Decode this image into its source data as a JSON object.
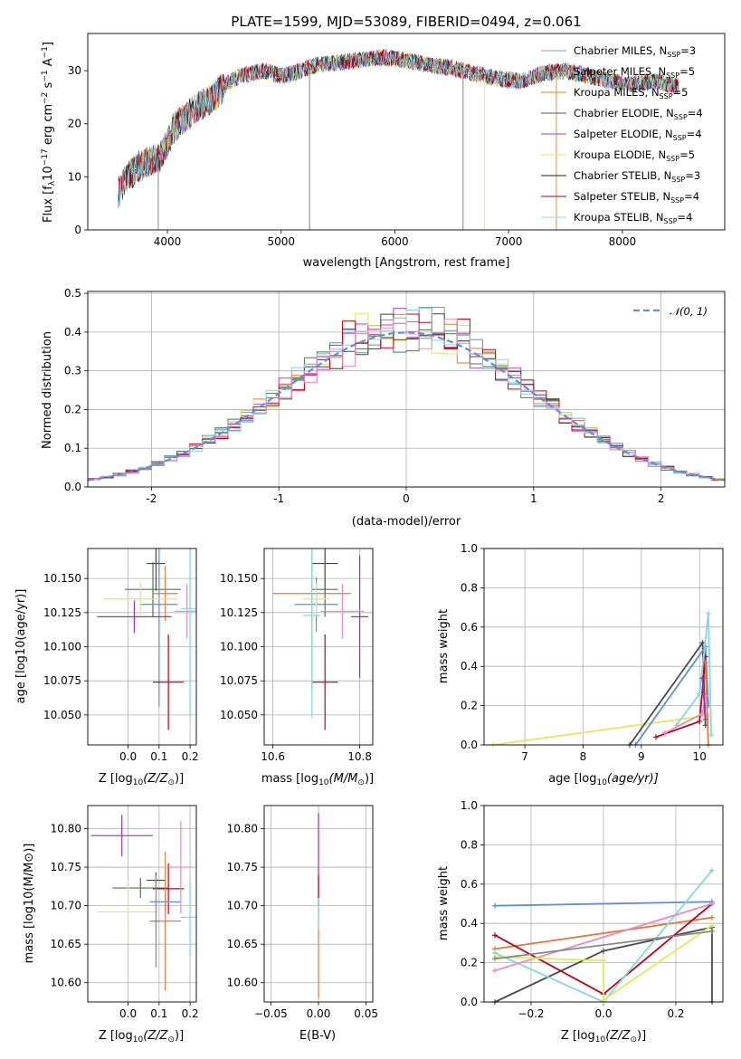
{
  "palette": [
    "#5b8fdb",
    "#e07b39",
    "#4a4a4a",
    "#c040c8",
    "#ddec5c",
    "#333333",
    "#c0001a",
    "#80d8e6",
    "#e889c0",
    "#aaaaaa"
  ],
  "chart_data": [
    {
      "id": "spectrum",
      "type": "line",
      "title": "PLATE=1599, MJD=53089, FIBERID=0494, z=0.061",
      "xlabel": "wavelength [Angstrom, rest frame]",
      "ylabel_main": "Flux [f",
      "ylabel_sub": "λ",
      "ylabel_rest": "10",
      "ylabel_exp": "−17",
      "ylabel_tail": " erg cm",
      "ylabel_exp2": "−2",
      "ylabel_tail2": " s",
      "ylabel_exp3": "−1",
      "ylabel_tail3": " A",
      "ylabel_exp4": "−1",
      "ylabel_end": "]",
      "xlim": [
        3300,
        8900
      ],
      "ylim": [
        0,
        37
      ],
      "xticks": [
        4000,
        5000,
        6000,
        7000,
        8000
      ],
      "yticks": [
        0,
        10,
        20,
        30
      ],
      "continuum": [
        [
          3570,
          7
        ],
        [
          3650,
          10
        ],
        [
          3750,
          12
        ],
        [
          3850,
          13
        ],
        [
          3950,
          14
        ],
        [
          4050,
          19
        ],
        [
          4150,
          21
        ],
        [
          4250,
          23
        ],
        [
          4350,
          24
        ],
        [
          4450,
          26
        ],
        [
          4550,
          28
        ],
        [
          4650,
          29
        ],
        [
          4750,
          29.5
        ],
        [
          4850,
          30
        ],
        [
          5000,
          29
        ],
        [
          5100,
          29.5
        ],
        [
          5300,
          31
        ],
        [
          5500,
          31.5
        ],
        [
          5700,
          32
        ],
        [
          5900,
          32.5
        ],
        [
          6100,
          32
        ],
        [
          6300,
          31
        ],
        [
          6500,
          30.5
        ],
        [
          6700,
          29.5
        ],
        [
          6900,
          28.5
        ],
        [
          7100,
          28
        ],
        [
          7300,
          29.5
        ],
        [
          7500,
          30
        ],
        [
          7700,
          29
        ],
        [
          7900,
          28
        ],
        [
          8100,
          27.5
        ],
        [
          8300,
          28
        ],
        [
          8500,
          27
        ]
      ],
      "spikes": [
        [
          5250,
          0
        ],
        [
          6790,
          0
        ],
        [
          7420,
          0
        ],
        [
          3920,
          0
        ],
        [
          6600,
          0
        ]
      ],
      "legend": [
        {
          "name": "Chabrier MILES, N",
          "sub": "SSP",
          "val": "=3"
        },
        {
          "name": "Salpeter MILES, N",
          "sub": "SSP",
          "val": "=5"
        },
        {
          "name": "Kroupa MILES, N",
          "sub": "SSP",
          "val": "=5"
        },
        {
          "name": "Chabrier ELODIE, N",
          "sub": "SSP",
          "val": "=4"
        },
        {
          "name": "Salpeter ELODIE, N",
          "sub": "SSP",
          "val": "=4"
        },
        {
          "name": "Kroupa ELODIE, N",
          "sub": "SSP",
          "val": "=5"
        },
        {
          "name": "Chabrier STELIB, N",
          "sub": "SSP",
          "val": "=3"
        },
        {
          "name": "Salpeter STELIB, N",
          "sub": "SSP",
          "val": "=4"
        },
        {
          "name": "Kroupa STELIB, N",
          "sub": "SSP",
          "val": "=4"
        }
      ],
      "legend_colors": [
        "#6a9ed8",
        "#8a8a8a",
        "#d08a20",
        "#555555",
        "#a040c0",
        "#e8e060",
        "#222222",
        "#b00020",
        "#88dcea"
      ]
    },
    {
      "id": "residuals",
      "type": "line",
      "xlabel": "(data-model)/error",
      "ylabel": "Normed distribution",
      "xlim": [
        -2.5,
        2.5
      ],
      "ylim": [
        0,
        0.505
      ],
      "xticks": [
        -2,
        -1,
        0,
        1,
        2
      ],
      "yticks": [
        0.0,
        0.1,
        0.2,
        0.3,
        0.4,
        0.5
      ],
      "ytick_labels": [
        "0.0",
        "0.1",
        "0.2",
        "0.3",
        "0.4",
        "0.5"
      ],
      "legend": "𝒩(0, 1)",
      "gaussian_color": "#5b8fdb"
    },
    {
      "id": "age-vs-Z",
      "type": "scatter",
      "xlabel_a": "Z [log",
      "xlabel_b": "10",
      "xlabel_c": "(Z/Z",
      "xlabel_d": "⊙",
      "xlabel_e": ")]",
      "ylabel": "age  [log10(age/yr)]",
      "xlim": [
        -0.13,
        0.22
      ],
      "ylim": [
        10.028,
        10.172
      ],
      "xticks": [
        0.0,
        0.1,
        0.2
      ],
      "xtick_labels": [
        "0.0",
        "0.1",
        "0.2"
      ],
      "yticks": [
        10.05,
        10.075,
        10.1,
        10.125,
        10.15
      ],
      "ytick_labels": [
        "10.050",
        "10.075",
        "10.100",
        "10.125",
        "10.150"
      ],
      "points": [
        {
          "x": 0.08,
          "y": 10.142,
          "xerr": 0.09,
          "yerr": 0.02,
          "c": "#4a7a40"
        },
        {
          "x": 0.1,
          "y": 10.131,
          "xerr": 0.06,
          "yerr": 0.075,
          "c": "#5b8fdb"
        },
        {
          "x": 0.12,
          "y": 10.139,
          "xerr": 0.04,
          "yerr": 0.02,
          "c": "#e07b39"
        },
        {
          "x": 0.02,
          "y": 10.122,
          "xerr": 0.12,
          "yerr": 0.012,
          "c": "#a030b0"
        },
        {
          "x": 0.04,
          "y": 10.135,
          "xerr": 0.12,
          "yerr": 0.012,
          "c": "#ddec5c"
        },
        {
          "x": 0.09,
          "y": 10.161,
          "xerr": 0.03,
          "yerr": 0.02,
          "c": "#444444"
        },
        {
          "x": 0.13,
          "y": 10.074,
          "xerr": 0.05,
          "yerr": 0.035,
          "c": "#c0001a"
        },
        {
          "x": 0.19,
          "y": 10.126,
          "xerr": 0.04,
          "yerr": 0.02,
          "c": "#e889c0"
        },
        {
          "x": 0.2,
          "y": 10.128,
          "xerr": 0.03,
          "yerr": 0.08,
          "c": "#80d8e6"
        }
      ]
    },
    {
      "id": "age-vs-mass",
      "type": "scatter",
      "xlabel_a": "mass [log",
      "xlabel_b": "10",
      "xlabel_c": "(M/M",
      "xlabel_d": "⊙",
      "xlabel_e": ")]",
      "xlim": [
        10.58,
        10.83
      ],
      "ylim": [
        10.028,
        10.172
      ],
      "xticks": [
        10.6,
        10.8
      ],
      "xtick_labels": [
        "10.6",
        "10.8"
      ],
      "yticks": [
        10.05,
        10.075,
        10.1,
        10.125,
        10.15
      ],
      "ytick_labels": [
        "10.050",
        "10.075",
        "10.100",
        "10.125",
        "10.150"
      ],
      "points": [
        {
          "x": 10.72,
          "y": 10.161,
          "xerr": 0.03,
          "yerr": 0.02,
          "c": "#444444"
        },
        {
          "x": 10.69,
          "y": 10.139,
          "xerr": 0.09,
          "yerr": 0.07,
          "c": "#e07b39"
        },
        {
          "x": 10.7,
          "y": 10.131,
          "xerr": 0.05,
          "yerr": 0.02,
          "c": "#5b8fdb"
        },
        {
          "x": 10.72,
          "y": 10.142,
          "xerr": 0.03,
          "yerr": 0.02,
          "c": "#4a7a40"
        },
        {
          "x": 10.7,
          "y": 10.135,
          "xerr": 0.03,
          "yerr": 0.012,
          "c": "#ddec5c"
        },
        {
          "x": 10.8,
          "y": 10.122,
          "xerr": 0.02,
          "yerr": 0.045,
          "c": "#a030b0"
        },
        {
          "x": 10.72,
          "y": 10.074,
          "xerr": 0.03,
          "yerr": 0.035,
          "c": "#c0001a"
        },
        {
          "x": 10.76,
          "y": 10.126,
          "xerr": 0.05,
          "yerr": 0.02,
          "c": "#e889c0"
        },
        {
          "x": 10.69,
          "y": 10.123,
          "xerr": 0.02,
          "yerr": 0.075,
          "c": "#80d8e6"
        }
      ]
    },
    {
      "id": "weight-vs-age",
      "type": "line",
      "xlabel_a": "age  [log",
      "xlabel_b": "10",
      "xlabel_c": "(age/yr)]",
      "ylabel": "mass weight",
      "xlim": [
        6.3,
        10.4
      ],
      "ylim": [
        0,
        1.0
      ],
      "xticks": [
        7,
        8,
        9,
        10
      ],
      "yticks": [
        0.0,
        0.2,
        0.4,
        0.6,
        0.8,
        1.0
      ],
      "ytick_labels": [
        "0.0",
        "0.2",
        "0.4",
        "0.6",
        "0.8",
        "1.0"
      ],
      "series": [
        {
          "c": "#ddec5c",
          "pts": [
            [
              6.45,
              0
            ],
            [
              10.15,
              0.15
            ]
          ]
        },
        {
          "c": "#4a4a4a",
          "pts": [
            [
              8.8,
              0
            ],
            [
              10.05,
              0.52
            ],
            [
              10.1,
              0.1
            ]
          ]
        },
        {
          "c": "#5b8fdb",
          "pts": [
            [
              8.9,
              0
            ],
            [
              10.1,
              0.5
            ],
            [
              10.15,
              0.2
            ]
          ]
        },
        {
          "c": "#c0001a",
          "pts": [
            [
              9.25,
              0.04
            ],
            [
              10.0,
              0.12
            ],
            [
              10.1,
              0.45
            ]
          ]
        },
        {
          "c": "#80d8e6",
          "pts": [
            [
              9.6,
              0.1
            ],
            [
              10.0,
              0.26
            ],
            [
              10.15,
              0.67
            ],
            [
              10.2,
              0.05
            ]
          ]
        },
        {
          "c": "#e07b39",
          "pts": [
            [
              10.1,
              0.42
            ],
            [
              10.15,
              0.0
            ]
          ]
        },
        {
          "c": "#e889c0",
          "pts": [
            [
              9.4,
              0.06
            ],
            [
              10.05,
              0.16
            ],
            [
              10.1,
              0.25
            ]
          ]
        },
        {
          "c": "#a030b0",
          "pts": [
            [
              10.05,
              0.34
            ],
            [
              10.1,
              0.13
            ]
          ]
        }
      ]
    },
    {
      "id": "mass-vs-Z",
      "type": "scatter",
      "xlabel_a": "Z [log",
      "xlabel_b": "10",
      "xlabel_c": "(Z/Z",
      "xlabel_d": "⊙",
      "xlabel_e": ")]",
      "ylabel": "mass [log10(M/M⊙)]",
      "xlim": [
        -0.13,
        0.22
      ],
      "ylim": [
        10.575,
        10.83
      ],
      "xticks": [
        0.0,
        0.1,
        0.2
      ],
      "xtick_labels": [
        "0.0",
        "0.1",
        "0.2"
      ],
      "yticks": [
        10.6,
        10.65,
        10.7,
        10.75,
        10.8
      ],
      "ytick_labels": [
        "10.60",
        "10.65",
        "10.70",
        "10.75",
        "10.80"
      ],
      "points": [
        {
          "x": -0.02,
          "y": 10.791,
          "xerr": 0.1,
          "yerr": 0.027,
          "c": "#a030b0"
        },
        {
          "x": 0.04,
          "y": 10.723,
          "xerr": 0.09,
          "yerr": 0.013,
          "c": "#4a7a40"
        },
        {
          "x": 0.09,
          "y": 10.733,
          "xerr": 0.03,
          "yerr": 0.01,
          "c": "#444444"
        },
        {
          "x": 0.13,
          "y": 10.722,
          "xerr": 0.05,
          "yerr": 0.033,
          "c": "#c0001a"
        },
        {
          "x": 0.12,
          "y": 10.705,
          "xerr": 0.05,
          "yerr": 0.013,
          "c": "#5b8fdb"
        },
        {
          "x": 0.12,
          "y": 10.68,
          "xerr": 0.05,
          "yerr": 0.09,
          "c": "#e07b39"
        },
        {
          "x": 0.0,
          "y": 10.692,
          "xerr": 0.1,
          "yerr": 0.04,
          "c": "#ddec5c"
        },
        {
          "x": 0.17,
          "y": 10.75,
          "xerr": 0.04,
          "yerr": 0.06,
          "c": "#e889c0"
        },
        {
          "x": 0.2,
          "y": 10.685,
          "xerr": 0.03,
          "yerr": 0.05,
          "c": "#80d8e6"
        },
        {
          "x": 0.09,
          "y": 10.68,
          "xerr": 0.01,
          "yerr": 0.06,
          "c": "#888888"
        }
      ]
    },
    {
      "id": "mass-vs-ebv",
      "type": "scatter",
      "xlabel": "E(B-V)",
      "xlim": [
        -0.057,
        0.057
      ],
      "ylim": [
        10.575,
        10.83
      ],
      "xticks": [
        -0.05,
        0.0,
        0.05
      ],
      "xtick_labels": [
        "−0.05",
        "0.00",
        "0.05"
      ],
      "yticks": [
        10.6,
        10.65,
        10.7,
        10.75,
        10.8
      ],
      "ytick_labels": [
        "10.60",
        "10.65",
        "10.70",
        "10.75",
        "10.80"
      ],
      "points": [
        {
          "x": 0.0,
          "y": 10.75,
          "xerr": 0,
          "yerr": 0.07,
          "c": "#a030b0"
        },
        {
          "x": 0.0,
          "y": 10.63,
          "xerr": 0,
          "yerr": 0.05,
          "c": "#e07b39"
        },
        {
          "x": 0.0,
          "y": 10.72,
          "xerr": 0,
          "yerr": 0.02,
          "c": "#c0001a"
        },
        {
          "x": 0.0,
          "y": 10.69,
          "xerr": 0,
          "yerr": 0.02,
          "c": "#80d8e6"
        }
      ]
    },
    {
      "id": "weight-vs-Z",
      "type": "line",
      "xlabel_a": "Z [log",
      "xlabel_b": "10",
      "xlabel_c": "(Z/Z",
      "xlabel_d": "⊙",
      "xlabel_e": ")]",
      "ylabel": "mass weight",
      "xlim": [
        -0.33,
        0.33
      ],
      "ylim": [
        0,
        1.0
      ],
      "xticks": [
        -0.2,
        0.0,
        0.2
      ],
      "xtick_labels": [
        "−0.2",
        "0.0",
        "0.2"
      ],
      "yticks": [
        0.0,
        0.2,
        0.4,
        0.6,
        0.8,
        1.0
      ],
      "ytick_labels": [
        "0.0",
        "0.2",
        "0.4",
        "0.6",
        "0.8",
        "1.0"
      ],
      "series": [
        {
          "c": "#5b8fdb",
          "pts": [
            [
              -0.3,
              0.49
            ],
            [
              0.3,
              0.51
            ]
          ]
        },
        {
          "c": "#e07b39",
          "pts": [
            [
              -0.3,
              0.27
            ],
            [
              0.3,
              0.43
            ]
          ]
        },
        {
          "c": "#4a4a4a",
          "pts": [
            [
              -0.3,
              0.0
            ],
            [
              0.0,
              0.26
            ],
            [
              0.3,
              0.38
            ],
            [
              0.3,
              0.0
            ]
          ]
        },
        {
          "c": "#c0001a",
          "pts": [
            [
              -0.3,
              0.34
            ],
            [
              0.0,
              0.04
            ],
            [
              0.3,
              0.5
            ]
          ]
        },
        {
          "c": "#80d8e6",
          "pts": [
            [
              -0.3,
              0.25
            ],
            [
              0.0,
              0.0
            ],
            [
              0.3,
              0.67
            ]
          ]
        },
        {
          "c": "#e889c0",
          "pts": [
            [
              -0.3,
              0.16
            ],
            [
              0.3,
              0.5
            ]
          ]
        },
        {
          "c": "#ddec5c",
          "pts": [
            [
              -0.3,
              0.23
            ],
            [
              0.0,
              0.21
            ],
            [
              0.0,
              0.01
            ],
            [
              0.3,
              0.39
            ]
          ]
        },
        {
          "c": "#888888",
          "pts": [
            [
              -0.3,
              0.22
            ],
            [
              0.3,
              0.36
            ]
          ]
        }
      ]
    }
  ]
}
